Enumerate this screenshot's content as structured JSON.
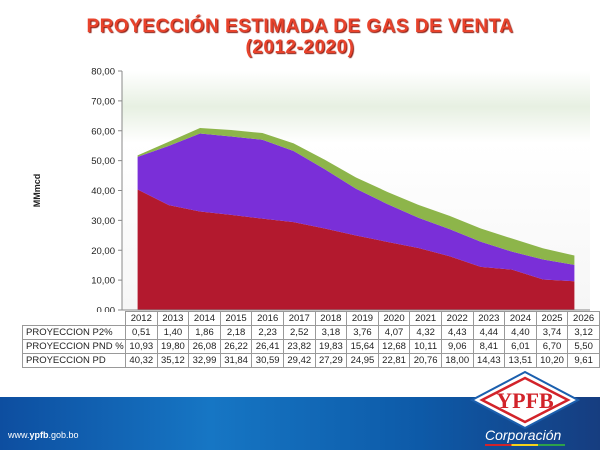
{
  "header": {
    "title_line1": "PROYECCIÓN ESTIMADA DE GAS DE VENTA",
    "title_line2": "(2012-2020)"
  },
  "footer": {
    "url_prefix": "www.",
    "url_brand": "ypfb",
    "url_suffix": ".gob.bo",
    "logo_text": "YPFB",
    "corp_text": "Corporación"
  },
  "chart_data": {
    "type": "area",
    "stacked": true,
    "title": "PROYECCIÓN ESTIMADA DE GAS DE VENTA (2012-2020)",
    "ylabel": "MMmcd",
    "xlabel": "",
    "ylim": [
      0,
      80
    ],
    "yticks": [
      "0,00",
      "10,00",
      "20,00",
      "30,00",
      "40,00",
      "50,00",
      "60,00",
      "70,00",
      "80,00"
    ],
    "categories": [
      "2012",
      "2013",
      "2014",
      "2015",
      "2016",
      "2017",
      "2018",
      "2019",
      "2020",
      "2021",
      "2022",
      "2023",
      "2024",
      "2025",
      "2026"
    ],
    "series": [
      {
        "name": "PROYECCION PD",
        "color": "#b3192e",
        "values": [
          40.32,
          35.12,
          32.99,
          31.84,
          30.59,
          29.42,
          27.29,
          24.95,
          22.81,
          20.76,
          18.0,
          14.43,
          13.51,
          10.2,
          9.61
        ],
        "labels": [
          "40,32",
          "35,12",
          "32,99",
          "31,84",
          "30,59",
          "29,42",
          "27,29",
          "24,95",
          "22,81",
          "20,76",
          "18,00",
          "14,43",
          "13,51",
          "10,20",
          "9,61"
        ]
      },
      {
        "name": "PROYECCION PND %",
        "color": "#7a2fd8",
        "values": [
          10.93,
          19.8,
          26.08,
          26.22,
          26.41,
          23.82,
          19.83,
          15.64,
          12.68,
          10.11,
          9.06,
          8.41,
          6.01,
          6.7,
          5.5
        ],
        "labels": [
          "10,93",
          "19,80",
          "26,08",
          "26,22",
          "26,41",
          "23,82",
          "19,83",
          "15,64",
          "12,68",
          "10,11",
          "9,06",
          "8,41",
          "6,01",
          "6,70",
          "5,50"
        ]
      },
      {
        "name": "PROYECCION P2%",
        "color": "#8db54a",
        "values": [
          0.51,
          1.4,
          1.86,
          2.18,
          2.23,
          2.52,
          3.18,
          3.76,
          4.07,
          4.32,
          4.43,
          4.44,
          4.4,
          3.74,
          3.12
        ],
        "labels": [
          "0,51",
          "1,40",
          "1,86",
          "2,18",
          "2,23",
          "2,52",
          "3,18",
          "3,76",
          "4,07",
          "4,32",
          "4,43",
          "4,44",
          "4,40",
          "3,74",
          "3,12"
        ]
      }
    ],
    "table_order": [
      2,
      1,
      0
    ],
    "legend": "table-below"
  }
}
